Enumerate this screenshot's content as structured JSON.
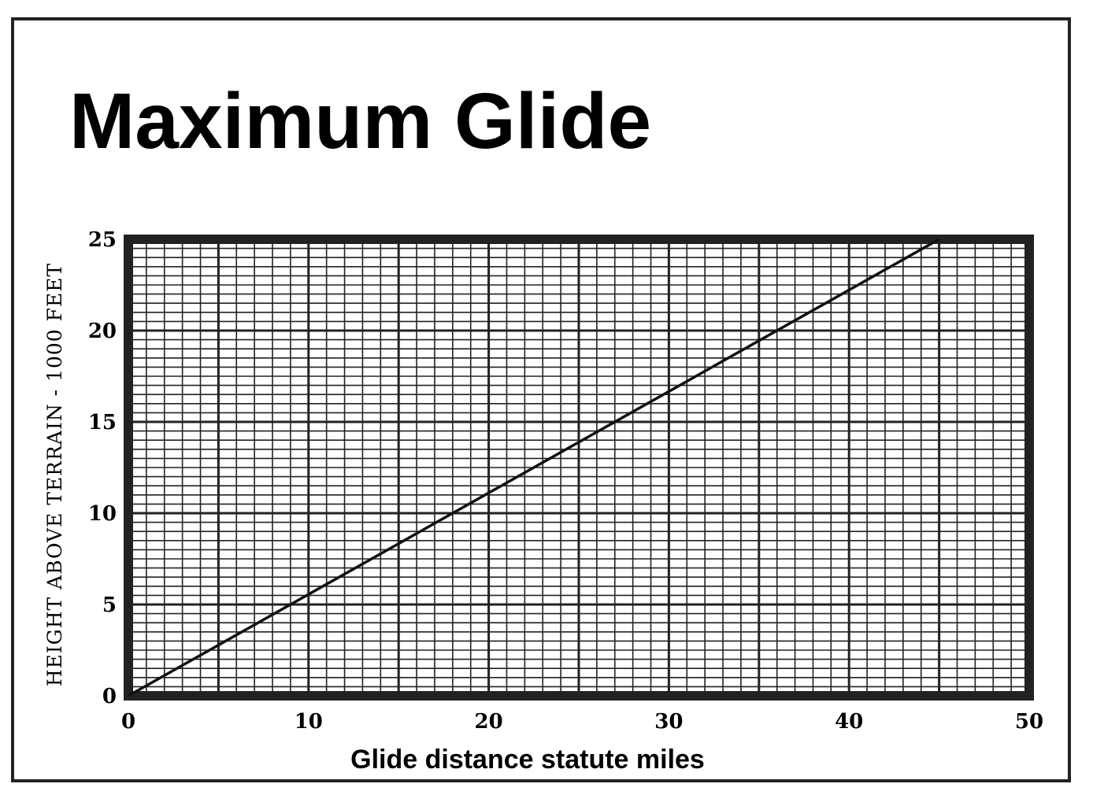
{
  "chart_data": {
    "type": "line",
    "title": "Maximum Glide",
    "xlabel": "Glide distance statute miles",
    "ylabel": "HEIGHT ABOVE TERRAIN - 1000 FEET",
    "xlim": [
      0,
      50
    ],
    "ylim": [
      0,
      25
    ],
    "x_ticks": [
      "0",
      "10",
      "20",
      "30",
      "40",
      "50"
    ],
    "y_ticks": [
      "0",
      "5",
      "10",
      "15",
      "20",
      "25"
    ],
    "grid": true,
    "series": [
      {
        "x": [
          0,
          45
        ],
        "y": [
          0,
          25
        ]
      }
    ]
  }
}
